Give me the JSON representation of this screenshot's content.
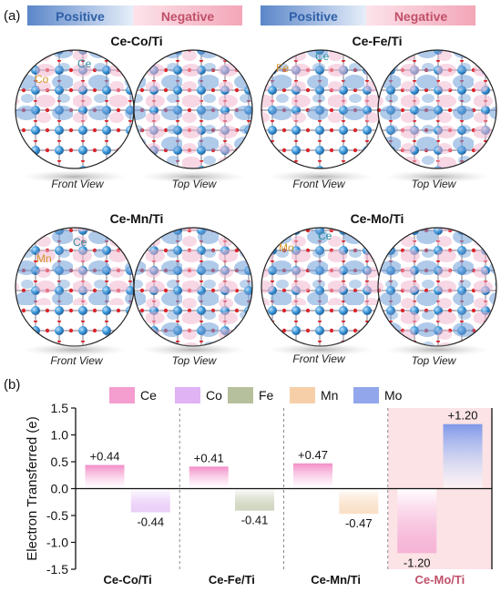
{
  "figure": {
    "panel_a_label": "(a)",
    "panel_b_label": "(b)",
    "colorbar": {
      "positive": "Positive",
      "negative": "Negative",
      "positive_color": "#5b86c9",
      "negative_color": "#f3a6b8"
    },
    "structures": [
      {
        "title": "Ce-Co/Ti",
        "dopant": "Co",
        "host": "Ce",
        "front": "Front View",
        "top": "Top View"
      },
      {
        "title": "Ce-Fe/Ti",
        "dopant": "Fe",
        "host": "Ce",
        "front": "Front View",
        "top": "Top View"
      },
      {
        "title": "Ce-Mn/Ti",
        "dopant": "Mn",
        "host": "Ce",
        "front": "Front View",
        "top": "Top View"
      },
      {
        "title": "Ce-Mo/Ti",
        "dopant": "Mo",
        "host": "Ce",
        "front": "Front View",
        "top": "Top View"
      }
    ]
  },
  "chart_data": {
    "type": "bar",
    "title": "",
    "xlabel": "",
    "ylabel": "Electron Transferred (e)",
    "ylim": [
      -1.5,
      1.5
    ],
    "yticks": [
      "1.5",
      "1.0",
      "0.5",
      "0.0",
      "-0.5",
      "-1.0",
      "-1.5"
    ],
    "grid": false,
    "legend_position": "top",
    "legend": [
      {
        "name": "Ce",
        "color": "#f28dc8"
      },
      {
        "name": "Co",
        "color": "#d9a6f2"
      },
      {
        "name": "Fe",
        "color": "#a9b58c"
      },
      {
        "name": "Mn",
        "color": "#f5c79a"
      },
      {
        "name": "Mo",
        "color": "#7f98e8"
      }
    ],
    "categories": [
      "Ce-Co/Ti",
      "Ce-Fe/Ti",
      "Ce-Mn/Ti",
      "Ce-Mo/Ti"
    ],
    "highlighted_category": "Ce-Mo/Ti",
    "highlight_color": "#fbe3e6",
    "bars": [
      {
        "category": "Ce-Co/Ti",
        "element": "Ce",
        "value": 0.44,
        "label": "+0.44"
      },
      {
        "category": "Ce-Co/Ti",
        "element": "Co",
        "value": -0.44,
        "label": "-0.44"
      },
      {
        "category": "Ce-Fe/Ti",
        "element": "Ce",
        "value": 0.41,
        "label": "+0.41"
      },
      {
        "category": "Ce-Fe/Ti",
        "element": "Fe",
        "value": -0.41,
        "label": "-0.41"
      },
      {
        "category": "Ce-Mn/Ti",
        "element": "Ce",
        "value": 0.47,
        "label": "+0.47"
      },
      {
        "category": "Ce-Mn/Ti",
        "element": "Mn",
        "value": -0.47,
        "label": "-0.47"
      },
      {
        "category": "Ce-Mo/Ti",
        "element": "Ce",
        "value": -1.2,
        "label": "-1.20"
      },
      {
        "category": "Ce-Mo/Ti",
        "element": "Mo",
        "value": 1.2,
        "label": "+1.20"
      }
    ]
  }
}
